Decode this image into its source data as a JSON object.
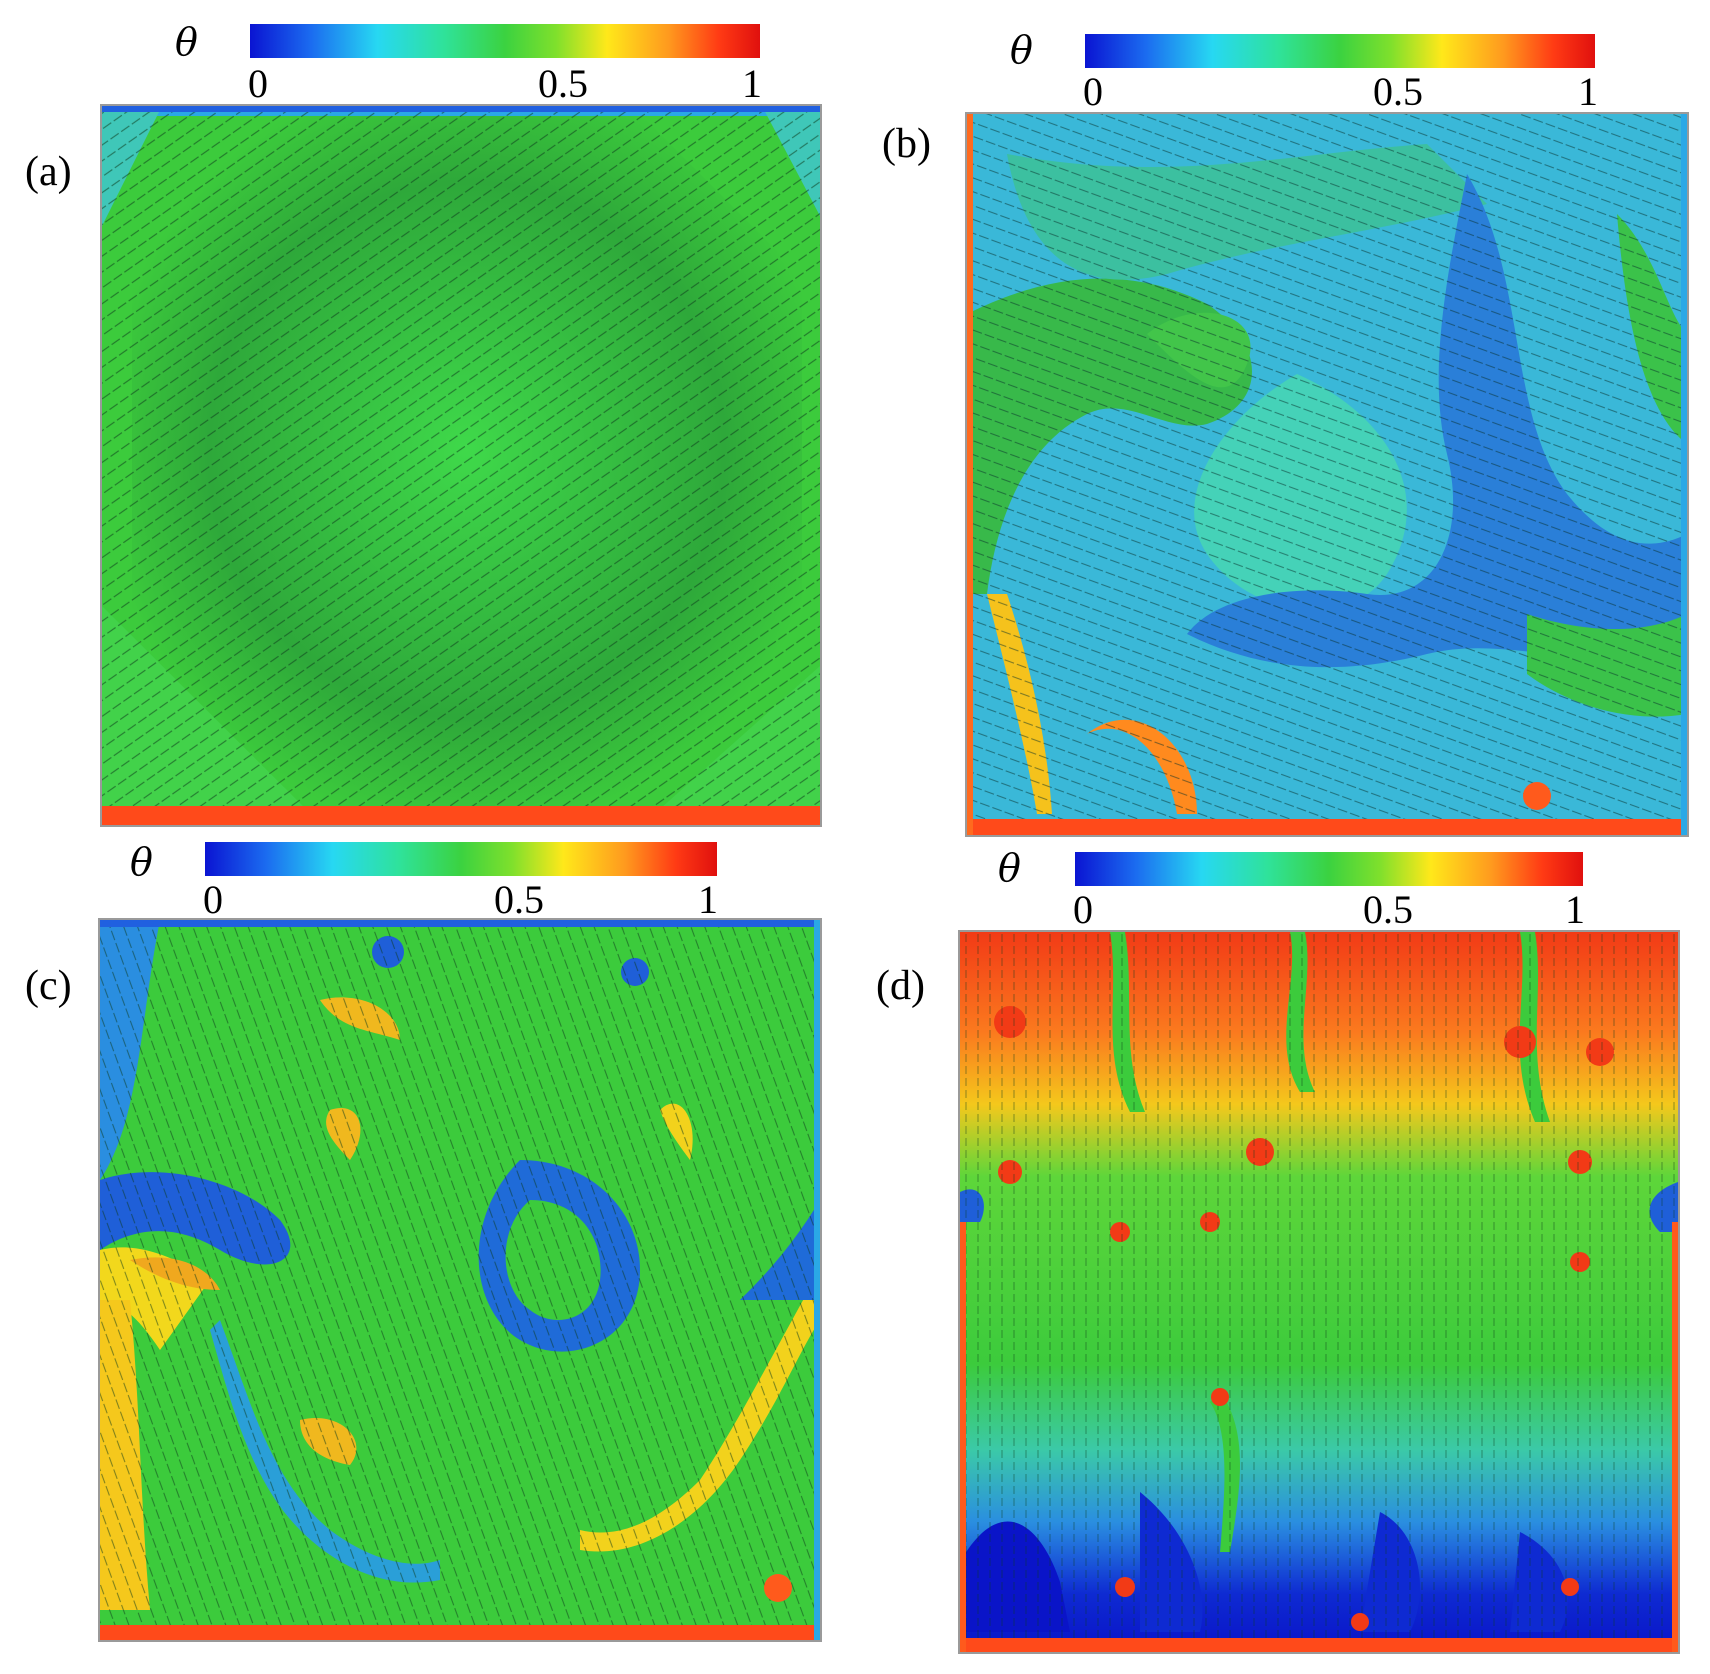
{
  "colorbar": {
    "symbol": "θ",
    "ticks": [
      "0",
      "0.5",
      "1"
    ],
    "colormap": [
      "#0a14d2",
      "#27d8f2",
      "#3bd240",
      "#ffe81a",
      "#e0100e"
    ]
  },
  "panels": [
    {
      "id": "a",
      "label": "(a)",
      "background": "#3ccb3c"
    },
    {
      "id": "b",
      "label": "(b)",
      "background": "#3ab8d8"
    },
    {
      "id": "c",
      "label": "(c)",
      "background": "#3ccb3c"
    },
    {
      "id": "d",
      "label": "(d)",
      "background": "#3ccb3c"
    }
  ]
}
